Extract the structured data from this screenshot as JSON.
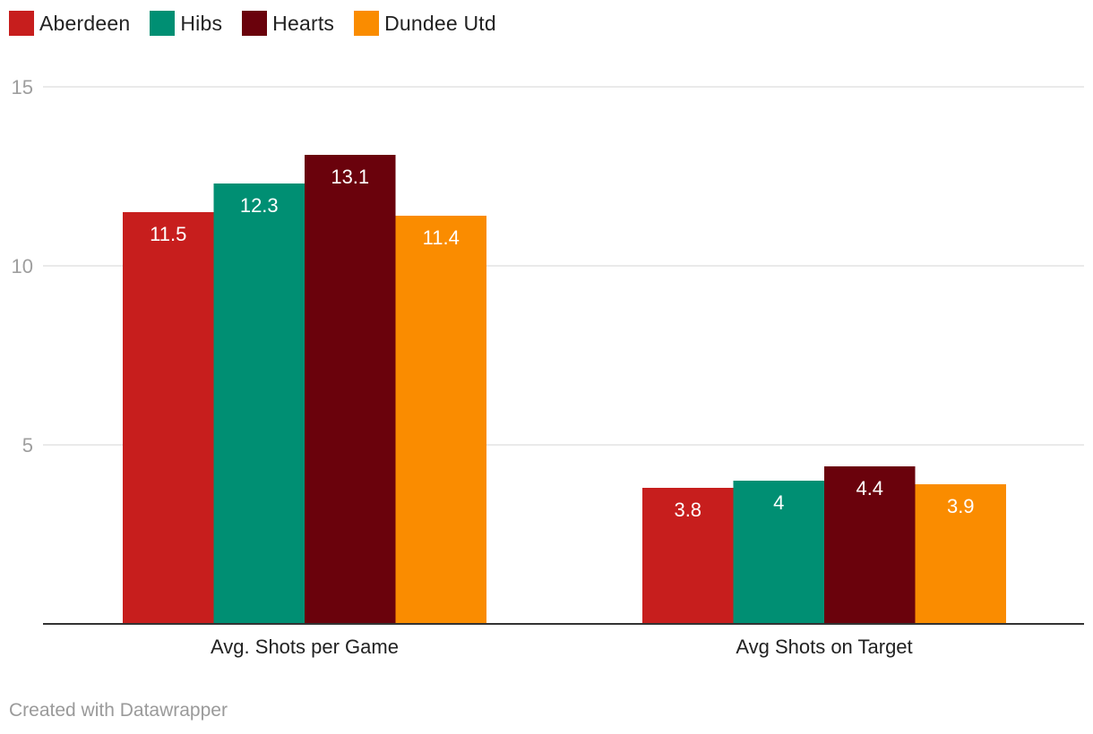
{
  "legend": [
    {
      "name": "Aberdeen",
      "color": "#c71e1d"
    },
    {
      "name": "Hibs",
      "color": "#008f73"
    },
    {
      "name": "Hearts",
      "color": "#6a020c"
    },
    {
      "name": "Dundee Utd",
      "color": "#fa8c00"
    }
  ],
  "chart_data": {
    "type": "bar",
    "categories": [
      "Avg. Shots per Game",
      "Avg Shots on Target"
    ],
    "series": [
      {
        "name": "Aberdeen",
        "values": [
          11.5,
          3.8
        ],
        "labels": [
          "11.5",
          "3.8"
        ]
      },
      {
        "name": "Hibs",
        "values": [
          12.3,
          4
        ],
        "labels": [
          "12.3",
          "4"
        ]
      },
      {
        "name": "Hearts",
        "values": [
          13.1,
          4.4
        ],
        "labels": [
          "13.1",
          "4.4"
        ]
      },
      {
        "name": "Dundee Utd",
        "values": [
          11.4,
          3.9
        ],
        "labels": [
          "11.4",
          "3.9"
        ]
      }
    ],
    "ylim": [
      0,
      15
    ],
    "yticks": [
      5,
      10,
      15
    ],
    "grid": true,
    "title": "",
    "xlabel": "",
    "ylabel": "",
    "legend_position": "top-left"
  },
  "footer": {
    "credit": "Created with Datawrapper"
  }
}
